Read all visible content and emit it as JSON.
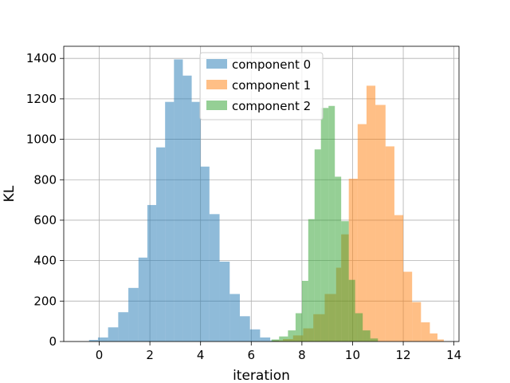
{
  "chart_data": {
    "type": "histogram",
    "xlabel": "iteration",
    "ylabel": "KL",
    "xlim": [
      -1.4,
      14.2
    ],
    "ylim": [
      0,
      1460
    ],
    "xticks": [
      0,
      2,
      4,
      6,
      8,
      10,
      12,
      14
    ],
    "yticks": [
      0,
      200,
      400,
      600,
      800,
      1000,
      1200,
      1400
    ],
    "grid": true,
    "legend_position": "top-center",
    "series": [
      {
        "name": "component 0",
        "color": "#1f77b4",
        "alpha": 0.5,
        "bins": [
          {
            "x0": -0.4,
            "x1": -0.05,
            "y": 8
          },
          {
            "x0": -0.05,
            "x1": 0.35,
            "y": 20
          },
          {
            "x0": 0.35,
            "x1": 0.75,
            "y": 70
          },
          {
            "x0": 0.75,
            "x1": 1.15,
            "y": 145
          },
          {
            "x0": 1.15,
            "x1": 1.55,
            "y": 265
          },
          {
            "x0": 1.55,
            "x1": 1.9,
            "y": 415
          },
          {
            "x0": 1.9,
            "x1": 2.25,
            "y": 675
          },
          {
            "x0": 2.25,
            "x1": 2.6,
            "y": 960
          },
          {
            "x0": 2.6,
            "x1": 2.95,
            "y": 1185
          },
          {
            "x0": 2.95,
            "x1": 3.3,
            "y": 1395
          },
          {
            "x0": 3.3,
            "x1": 3.65,
            "y": 1315
          },
          {
            "x0": 3.65,
            "x1": 4.0,
            "y": 1185
          },
          {
            "x0": 4.0,
            "x1": 4.35,
            "y": 865
          },
          {
            "x0": 4.35,
            "x1": 4.75,
            "y": 630
          },
          {
            "x0": 4.75,
            "x1": 5.15,
            "y": 395
          },
          {
            "x0": 5.15,
            "x1": 5.55,
            "y": 235
          },
          {
            "x0": 5.55,
            "x1": 5.95,
            "y": 125
          },
          {
            "x0": 5.95,
            "x1": 6.35,
            "y": 60
          },
          {
            "x0": 6.35,
            "x1": 6.75,
            "y": 20
          },
          {
            "x0": 6.75,
            "x1": 7.1,
            "y": 5
          }
        ]
      },
      {
        "name": "component 1",
        "color": "#ff7f0e",
        "alpha": 0.5,
        "bins": [
          {
            "x0": 6.85,
            "x1": 7.25,
            "y": 5
          },
          {
            "x0": 7.25,
            "x1": 7.65,
            "y": 12
          },
          {
            "x0": 7.65,
            "x1": 8.05,
            "y": 30
          },
          {
            "x0": 8.05,
            "x1": 8.45,
            "y": 65
          },
          {
            "x0": 8.45,
            "x1": 8.9,
            "y": 135
          },
          {
            "x0": 8.9,
            "x1": 9.35,
            "y": 235
          },
          {
            "x0": 9.35,
            "x1": 9.55,
            "y": 365
          },
          {
            "x0": 9.55,
            "x1": 9.85,
            "y": 530
          },
          {
            "x0": 9.85,
            "x1": 10.2,
            "y": 805
          },
          {
            "x0": 10.2,
            "x1": 10.55,
            "y": 1075
          },
          {
            "x0": 10.55,
            "x1": 10.9,
            "y": 1265
          },
          {
            "x0": 10.9,
            "x1": 11.3,
            "y": 1170
          },
          {
            "x0": 11.3,
            "x1": 11.65,
            "y": 965
          },
          {
            "x0": 11.65,
            "x1": 12.0,
            "y": 625
          },
          {
            "x0": 12.0,
            "x1": 12.35,
            "y": 345
          },
          {
            "x0": 12.35,
            "x1": 12.7,
            "y": 195
          },
          {
            "x0": 12.7,
            "x1": 13.05,
            "y": 95
          },
          {
            "x0": 13.05,
            "x1": 13.35,
            "y": 40
          },
          {
            "x0": 13.35,
            "x1": 13.6,
            "y": 10
          }
        ]
      },
      {
        "name": "component 2",
        "color": "#2ca02c",
        "alpha": 0.5,
        "bins": [
          {
            "x0": 6.8,
            "x1": 7.1,
            "y": 10
          },
          {
            "x0": 7.1,
            "x1": 7.45,
            "y": 25
          },
          {
            "x0": 7.45,
            "x1": 7.75,
            "y": 55
          },
          {
            "x0": 7.75,
            "x1": 8.0,
            "y": 140
          },
          {
            "x0": 8.0,
            "x1": 8.25,
            "y": 300
          },
          {
            "x0": 8.25,
            "x1": 8.5,
            "y": 605
          },
          {
            "x0": 8.5,
            "x1": 8.75,
            "y": 950
          },
          {
            "x0": 8.75,
            "x1": 9.05,
            "y": 1155
          },
          {
            "x0": 9.05,
            "x1": 9.3,
            "y": 1165
          },
          {
            "x0": 9.3,
            "x1": 9.55,
            "y": 815
          },
          {
            "x0": 9.55,
            "x1": 9.85,
            "y": 595
          },
          {
            "x0": 9.85,
            "x1": 10.1,
            "y": 305
          },
          {
            "x0": 10.1,
            "x1": 10.4,
            "y": 140
          },
          {
            "x0": 10.4,
            "x1": 10.7,
            "y": 55
          },
          {
            "x0": 10.7,
            "x1": 11.0,
            "y": 15
          }
        ]
      }
    ]
  }
}
